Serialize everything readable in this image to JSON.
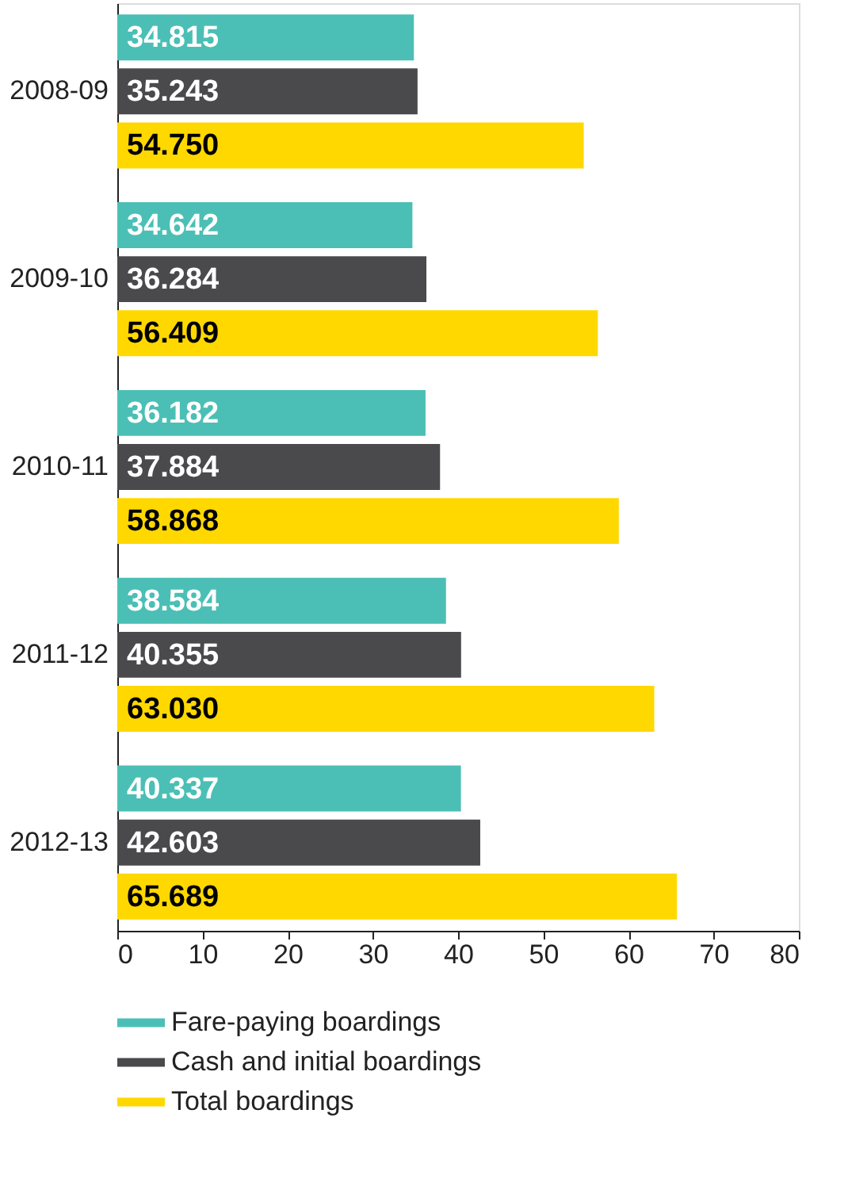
{
  "chart_data": {
    "type": "bar",
    "orientation": "horizontal",
    "categories": [
      "2008-09",
      "2009-10",
      "2010-11",
      "2011-12",
      "2012-13"
    ],
    "series": [
      {
        "name": "Fare-paying boardings",
        "color": "#4bbfb5",
        "values": [
          34.815,
          34.642,
          36.182,
          38.584,
          40.337
        ],
        "value_labels": [
          "34.815",
          "34.642",
          "36.182",
          "38.584",
          "40.337"
        ]
      },
      {
        "name": "Cash and initial boardings",
        "color": "#4a4a4c",
        "values": [
          35.243,
          36.284,
          37.884,
          40.355,
          42.603
        ],
        "value_labels": [
          "35.243",
          "36.284",
          "37.884",
          "40.355",
          "42.603"
        ]
      },
      {
        "name": "Total boardings",
        "color": "#ffd800",
        "values": [
          54.75,
          56.409,
          58.868,
          63.03,
          65.689
        ],
        "value_labels": [
          "54.750",
          "56.409",
          "58.868",
          "63.030",
          "65.689"
        ]
      }
    ],
    "xlim": [
      0,
      80
    ],
    "xticks": [
      0,
      10,
      20,
      30,
      40,
      50,
      60,
      70,
      80
    ],
    "grid": false,
    "legend": "bottom"
  }
}
